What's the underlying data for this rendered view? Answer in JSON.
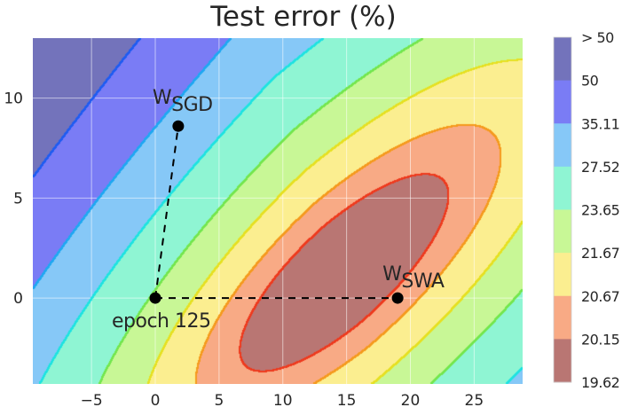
{
  "chart_data": {
    "type": "contour",
    "title": "Test error (%)",
    "xlabel": "",
    "ylabel": "",
    "xlim": [
      -9.6,
      28.8
    ],
    "ylim": [
      -4.3,
      13.0
    ],
    "x_ticks": [
      {
        "value": -5,
        "label": "−5"
      },
      {
        "value": 0,
        "label": "0"
      },
      {
        "value": 5,
        "label": "5"
      },
      {
        "value": 10,
        "label": "10"
      },
      {
        "value": 15,
        "label": "15"
      },
      {
        "value": 20,
        "label": "20"
      },
      {
        "value": 25,
        "label": "25"
      }
    ],
    "y_ticks": [
      {
        "value": 0,
        "label": "0"
      },
      {
        "value": 5,
        "label": "5"
      },
      {
        "value": 10,
        "label": "10"
      }
    ],
    "grid": true,
    "colorbar": {
      "placement": "right",
      "levels": [
        {
          "label": "> 50",
          "fill": "#7373bb",
          "line": "#2b2bd9"
        },
        {
          "label": "50",
          "fill": "#7a7cf5",
          "line": "#1f5cf2"
        },
        {
          "label": "35.11",
          "fill": "#86c8f7",
          "line": "#1fa8f2"
        },
        {
          "label": "27.52",
          "fill": "#8ff5d3",
          "line": "#1fe3e0"
        },
        {
          "label": "23.65",
          "fill": "#c8f796",
          "line": "#74e64e"
        },
        {
          "label": "21.67",
          "fill": "#fbee90",
          "line": "#e6e022"
        },
        {
          "label": "20.67",
          "fill": "#f8aa85",
          "line": "#f59a1e"
        },
        {
          "label": "20.15",
          "fill": "#b97673",
          "line": "#ee3a1e"
        },
        {
          "label": "19.62",
          "fill": "",
          "line": ""
        }
      ]
    },
    "contour_model": {
      "center": [
        14.5,
        1.1
      ],
      "angle_deg": 28,
      "a": 9.5,
      "b": 2.8,
      "skew": 0.18,
      "thresholds": [
        1.0,
        2.2,
        4.5,
        8.5,
        16,
        28,
        48
      ],
      "secondary": {
        "center": [
          11.3,
          3.3
        ],
        "a": 0.85,
        "b": 0.45,
        "angle_deg": 25
      }
    },
    "points": [
      {
        "name": "W_SGD",
        "label_main": "W",
        "label_sub": "SGD",
        "x": 1.8,
        "y": 8.6
      },
      {
        "name": "epoch-125",
        "label_main": "epoch 125",
        "label_sub": "",
        "x": 0,
        "y": 0
      },
      {
        "name": "W_SWA",
        "label_main": "W",
        "label_sub": "SWA",
        "x": 19.0,
        "y": 0
      }
    ],
    "dashed_lines": [
      {
        "from": [
          0,
          0
        ],
        "to": [
          1.8,
          8.6
        ]
      },
      {
        "from": [
          0,
          0
        ],
        "to": [
          19.0,
          0
        ]
      }
    ]
  }
}
